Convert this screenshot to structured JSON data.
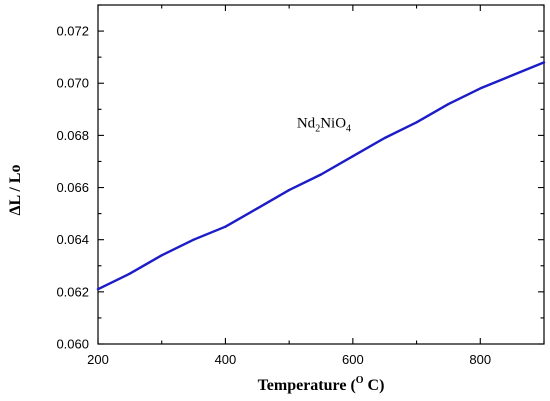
{
  "chart_data": {
    "type": "line",
    "title": "",
    "xlabel": {
      "main": "Temperature (",
      "sup": "O",
      "tail": " C)"
    },
    "ylabel": "ΔL / Lo",
    "xlim": [
      200,
      900
    ],
    "ylim": [
      0.06,
      0.073
    ],
    "x_ticks": [
      200,
      400,
      600,
      800
    ],
    "x_tick_labels": [
      "200",
      "400",
      "600",
      "800"
    ],
    "y_ticks": [
      0.06,
      0.062,
      0.064,
      0.066,
      0.068,
      0.07,
      0.072
    ],
    "y_tick_labels": [
      "0.060",
      "0.062",
      "0.064",
      "0.066",
      "0.068",
      "0.070",
      "0.072"
    ],
    "grid": false,
    "annotation": {
      "base1": "Nd",
      "sub1": "2",
      "base2": "NiO",
      "sub2": "4",
      "x": 600,
      "y": 0.0685
    },
    "series": [
      {
        "color": "#1c1cc8",
        "x": [
          200,
          250,
          300,
          350,
          400,
          450,
          500,
          550,
          600,
          650,
          700,
          750,
          800,
          850,
          900
        ],
        "values": [
          0.0621,
          0.0627,
          0.0634,
          0.064,
          0.0645,
          0.0652,
          0.0659,
          0.0665,
          0.0672,
          0.0679,
          0.0685,
          0.0692,
          0.0698,
          0.0703,
          0.0708
        ]
      }
    ]
  }
}
